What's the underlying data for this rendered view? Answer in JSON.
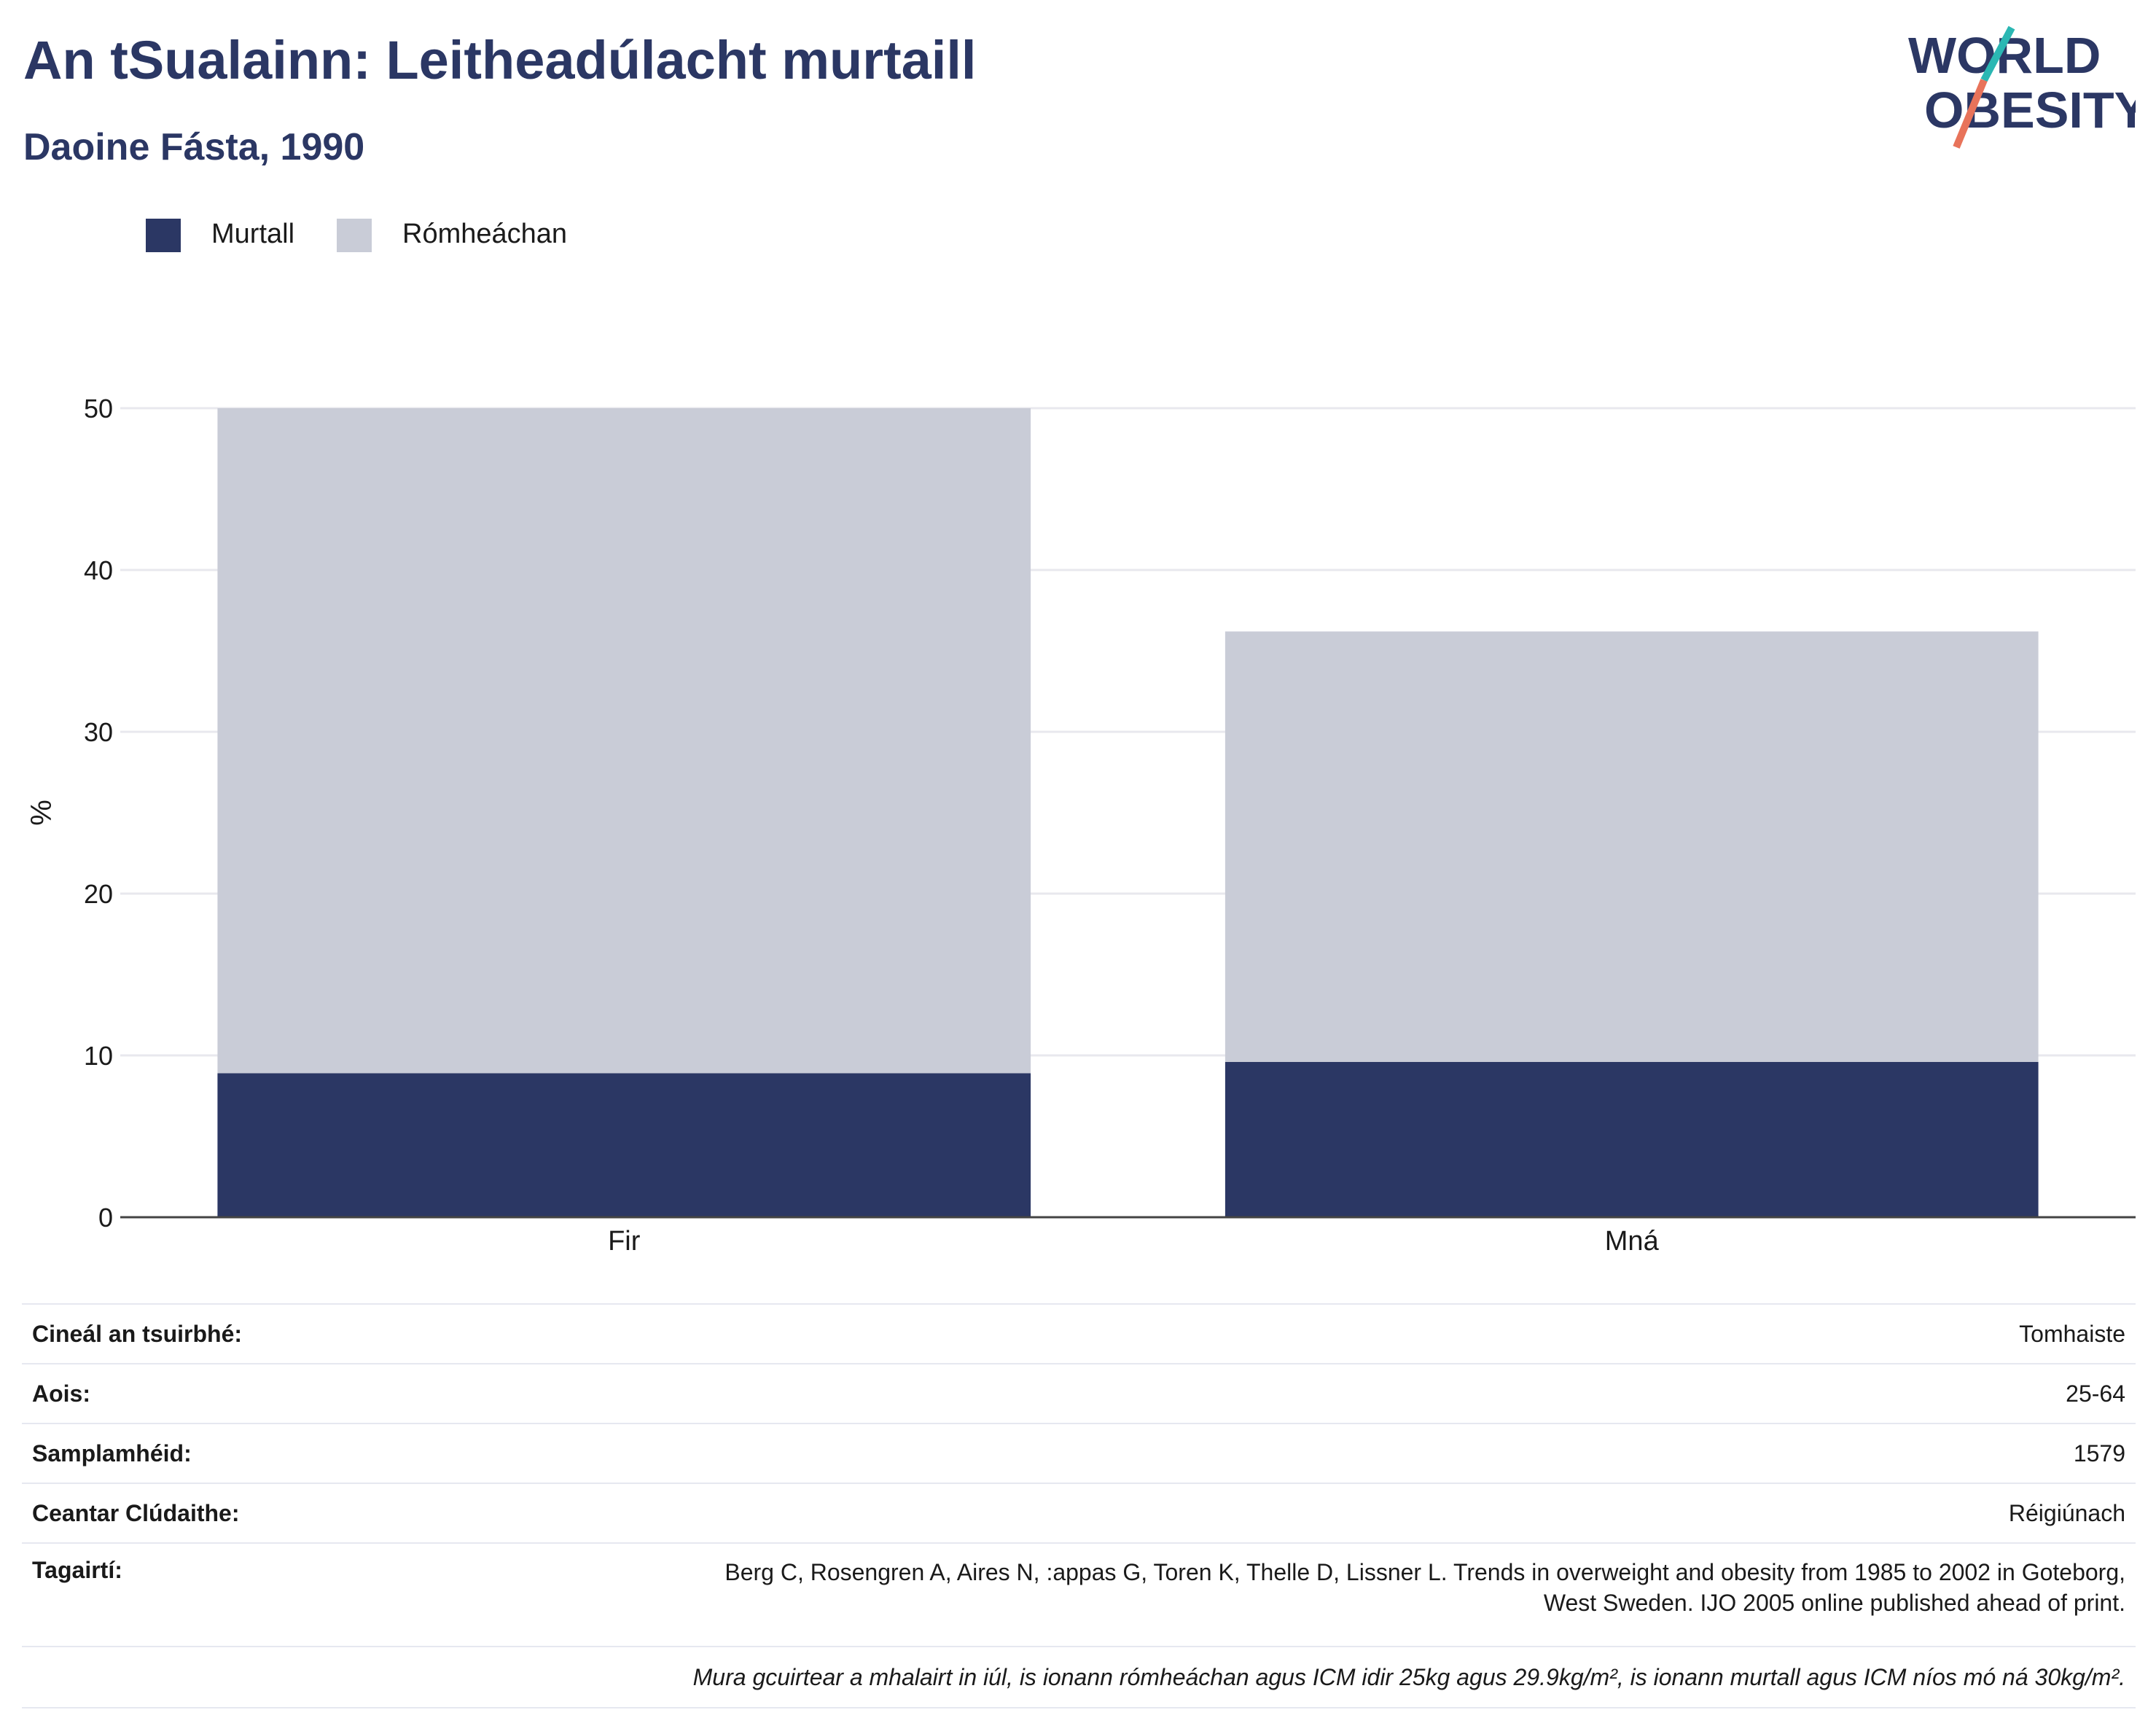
{
  "title": "An tSualainn: Leitheadúlacht murtaill",
  "subtitle": "Daoine Fásta, 1990",
  "logo": {
    "text_line1": "WORLD",
    "text_line2": "OBESITY",
    "colors": {
      "navy": "#2b3764",
      "teal": "#2bb7b3",
      "coral": "#e8735a"
    }
  },
  "legend": [
    {
      "label": "Murtall",
      "color": "#2b3764"
    },
    {
      "label": "Rómheáchan",
      "color": "#c9ccd7"
    }
  ],
  "chart_data": {
    "type": "bar",
    "stacked": true,
    "categories": [
      "Fir",
      "Mná"
    ],
    "series": [
      {
        "name": "Murtall",
        "color": "#2b3764",
        "values": [
          8.9,
          9.6
        ]
      },
      {
        "name": "Rómheáchan",
        "color": "#c9ccd7",
        "values": [
          41.1,
          26.6
        ]
      }
    ],
    "ylabel": "%",
    "xlabel": "",
    "ylim": [
      0,
      50
    ],
    "yticks": [
      0,
      10,
      20,
      30,
      40,
      50
    ],
    "grid": true,
    "legend_position": "top-left"
  },
  "info": {
    "rows": [
      {
        "label": "Cineál an tsuirbhé:",
        "value": "Tomhaiste"
      },
      {
        "label": "Aois:",
        "value": "25-64"
      },
      {
        "label": "Samplamhéid:",
        "value": "1579"
      },
      {
        "label": "Ceantar Clúdaithe:",
        "value": "Réigiúnach"
      }
    ],
    "references_label": "Tagairtí:",
    "references_line1": "Berg C, Rosengren A, Aires N, :appas G, Toren K, Thelle D, Lissner L. Trends in overweight and obesity from 1985 to 2002 in Goteborg,",
    "references_line2": "West Sweden. IJO 2005 online published ahead of print.",
    "footnote": "Mura gcuirtear a mhalairt in iúl, is ionann rómheáchan agus ICM idir 25kg agus 29.9kg/m², is ionann murtall agus ICM níos mó ná 30kg/m²."
  }
}
